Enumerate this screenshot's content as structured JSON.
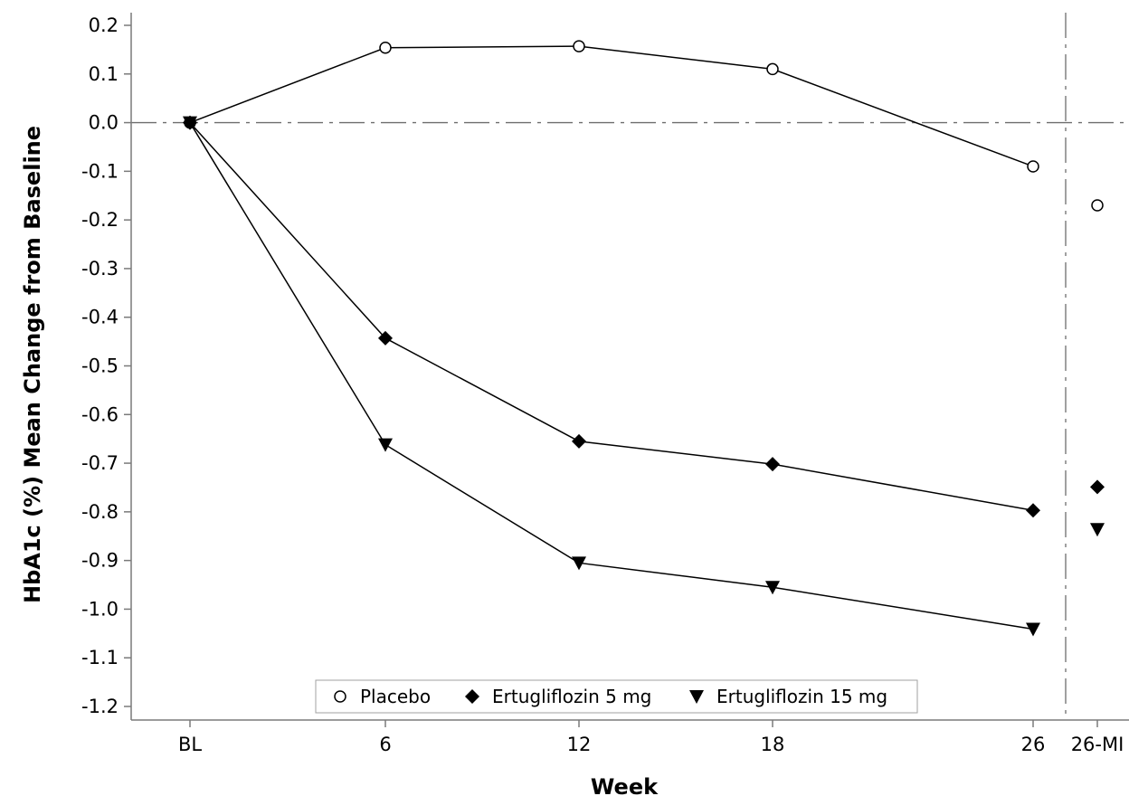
{
  "chart_data": {
    "type": "line",
    "xlabel": "Week",
    "ylabel": "HbA1c (%) Mean Change from Baseline",
    "categories": [
      "BL",
      "6",
      "12",
      "18",
      "26",
      "26-MI"
    ],
    "ylim": [
      -1.2,
      0.2
    ],
    "yticks": [
      "0.2",
      "0.1",
      "0.0",
      "-0.1",
      "-0.2",
      "-0.3",
      "-0.4",
      "-0.5",
      "-0.6",
      "-0.7",
      "-0.8",
      "-0.9",
      "-1.0",
      "-1.1",
      "-1.2"
    ],
    "reference_line_y": 0.0,
    "separator_between": [
      "26",
      "26-MI"
    ],
    "legend_position": "bottom-center",
    "series": [
      {
        "name": "Placebo",
        "marker": "circle-open",
        "values": [
          0.0,
          0.154,
          0.157,
          0.11,
          -0.09,
          -0.17
        ]
      },
      {
        "name": "Ertugliflozin 5 mg",
        "marker": "diamond-filled",
        "values": [
          0.0,
          -0.443,
          -0.655,
          -0.702,
          -0.797,
          -0.749
        ]
      },
      {
        "name": "Ertugliflozin 15 mg",
        "marker": "triangle-down-filled",
        "values": [
          0.0,
          -0.662,
          -0.905,
          -0.955,
          -1.041,
          -0.836
        ]
      }
    ]
  }
}
